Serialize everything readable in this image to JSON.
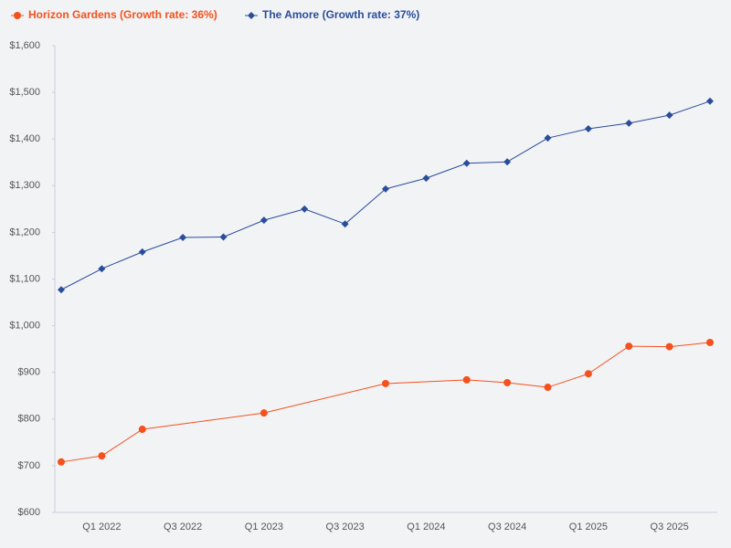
{
  "chart_data": {
    "type": "line",
    "categories": [
      null,
      "Q1 2022",
      null,
      "Q3 2022",
      null,
      "Q1 2023",
      null,
      "Q3 2023",
      null,
      "Q1 2024",
      null,
      "Q3 2024",
      null,
      "Q1 2025",
      null,
      "Q3 2025",
      null
    ],
    "series": [
      {
        "name": "Horizon Gardens (Growth rate: 36%)",
        "color": "#f4511e",
        "marker": "circle",
        "values": [
          708,
          721,
          778,
          null,
          null,
          813,
          null,
          null,
          876,
          null,
          884,
          878,
          868,
          897,
          956,
          955,
          964
        ]
      },
      {
        "name": "The Amore (Growth rate: 37%)",
        "color": "#2a4d9b",
        "marker": "diamond",
        "values": [
          1077,
          1122,
          1158,
          1189,
          1190,
          1226,
          1250,
          1218,
          1293,
          1316,
          1348,
          1351,
          1402,
          1422,
          1434,
          1451,
          1481
        ]
      }
    ],
    "ylim": [
      600,
      1600
    ],
    "yticks": [
      {
        "value": 600,
        "label": "$600"
      },
      {
        "value": 700,
        "label": "$700"
      },
      {
        "value": 800,
        "label": "$800"
      },
      {
        "value": 900,
        "label": "$900"
      },
      {
        "value": 1000,
        "label": "$1,000"
      },
      {
        "value": 1100,
        "label": "$1,100"
      },
      {
        "value": 1200,
        "label": "$1,200"
      },
      {
        "value": 1300,
        "label": "$1,300"
      },
      {
        "value": 1400,
        "label": "$1,400"
      },
      {
        "value": 1500,
        "label": "$1,500"
      },
      {
        "value": 1600,
        "label": "$1,600"
      }
    ],
    "grid": false,
    "legend": "top-left"
  }
}
